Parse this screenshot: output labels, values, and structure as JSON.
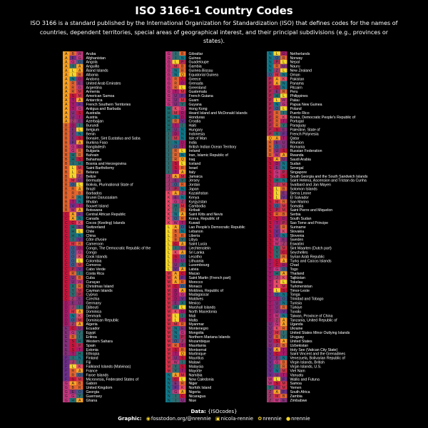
{
  "title": "ISO 3166-1 Country Codes",
  "subtitle": "ISO 3166 is a standard published by the International Organization for Standardization (ISO) that defines codes for the names of countries, dependent territories, special areas of geographical interest, and their principal subdivisions (e.g., provinces or states).",
  "caption": {
    "data_label": "Data:",
    "data_value": "{ISOcodes}",
    "graphic_label": "Graphic:",
    "handles": [
      {
        "icon": "mastodon-icon",
        "text": "fosstodon.org/@nrennie"
      },
      {
        "icon": "linkedin-icon",
        "text": "nicola-rennie"
      },
      {
        "icon": "bluesky-icon",
        "text": "nrennie"
      },
      {
        "icon": "github-icon",
        "text": "nrennie"
      }
    ]
  },
  "colors": {
    "background": "#000000",
    "text": "#ffffff",
    "palette": [
      "#f9a226",
      "#e5652f",
      "#c8153e",
      "#a71a6a",
      "#87307c",
      "#6d2f8a",
      "#c3377f",
      "#1f6f73",
      "#2e6b6f",
      "#a33a6d",
      "#e84c6a",
      "#f6d52a",
      "#d9344d",
      "#12798a",
      "#3c5c8a",
      "#b02a55"
    ]
  },
  "chart_data": {
    "type": "table",
    "description_columns": [
      "alpha-3 code letters",
      "country name"
    ],
    "rows": [
      {
        "code": "ABW",
        "name": "Aruba"
      },
      {
        "code": "AFG",
        "name": "Afghanistan"
      },
      {
        "code": "AGO",
        "name": "Angola"
      },
      {
        "code": "AIA",
        "name": "Anguilla"
      },
      {
        "code": "ALA",
        "name": "Åland Islands"
      },
      {
        "code": "ALB",
        "name": "Albania"
      },
      {
        "code": "AND",
        "name": "Andorra"
      },
      {
        "code": "ARE",
        "name": "United Arab Emirates"
      },
      {
        "code": "ARG",
        "name": "Argentina"
      },
      {
        "code": "ARM",
        "name": "Armenia"
      },
      {
        "code": "ASM",
        "name": "American Samoa"
      },
      {
        "code": "ATA",
        "name": "Antarctica"
      },
      {
        "code": "ATF",
        "name": "French Southern Territories"
      },
      {
        "code": "ATG",
        "name": "Antigua and Barbuda"
      },
      {
        "code": "AUS",
        "name": "Australia"
      },
      {
        "code": "AUT",
        "name": "Austria"
      },
      {
        "code": "AZE",
        "name": "Azerbaijan"
      },
      {
        "code": "BDI",
        "name": "Burundi"
      },
      {
        "code": "BEL",
        "name": "Belgium"
      },
      {
        "code": "BEN",
        "name": "Benin"
      },
      {
        "code": "BES",
        "name": "Bonaire, Sint Eustatius and Saba"
      },
      {
        "code": "BFA",
        "name": "Burkina Faso"
      },
      {
        "code": "BGD",
        "name": "Bangladesh"
      },
      {
        "code": "BGR",
        "name": "Bulgaria"
      },
      {
        "code": "BHR",
        "name": "Bahrain"
      },
      {
        "code": "BHS",
        "name": "Bahamas"
      },
      {
        "code": "BIH",
        "name": "Bosnia and Herzegovina"
      },
      {
        "code": "BLM",
        "name": "Saint Barthélemy"
      },
      {
        "code": "BLR",
        "name": "Belarus"
      },
      {
        "code": "BLZ",
        "name": "Belize"
      },
      {
        "code": "BMU",
        "name": "Bermuda"
      },
      {
        "code": "BOL",
        "name": "Bolivia, Plurinational State of"
      },
      {
        "code": "BRA",
        "name": "Brazil"
      },
      {
        "code": "BRB",
        "name": "Barbados"
      },
      {
        "code": "BRN",
        "name": "Brunei Darussalam"
      },
      {
        "code": "BTN",
        "name": "Bhutan"
      },
      {
        "code": "BVT",
        "name": "Bouvet Island"
      },
      {
        "code": "BWA",
        "name": "Botswana"
      },
      {
        "code": "CAF",
        "name": "Central African Republic"
      },
      {
        "code": "CAN",
        "name": "Canada"
      },
      {
        "code": "CCK",
        "name": "Cocos (Keeling) Islands"
      },
      {
        "code": "CHE",
        "name": "Switzerland"
      },
      {
        "code": "CHL",
        "name": "Chile"
      },
      {
        "code": "CHN",
        "name": "China"
      },
      {
        "code": "CIV",
        "name": "Côte d'Ivoire"
      },
      {
        "code": "CMR",
        "name": "Cameroon"
      },
      {
        "code": "COD",
        "name": "Congo, The Democratic Republic of the"
      },
      {
        "code": "COG",
        "name": "Congo"
      },
      {
        "code": "COK",
        "name": "Cook Islands"
      },
      {
        "code": "COL",
        "name": "Colombia"
      },
      {
        "code": "COM",
        "name": "Comoros"
      },
      {
        "code": "CPV",
        "name": "Cabo Verde"
      },
      {
        "code": "CRI",
        "name": "Costa Rica"
      },
      {
        "code": "CUB",
        "name": "Cuba"
      },
      {
        "code": "CUW",
        "name": "Curaçao"
      },
      {
        "code": "CXR",
        "name": "Christmas Island"
      },
      {
        "code": "CYM",
        "name": "Cayman Islands"
      },
      {
        "code": "CYP",
        "name": "Cyprus"
      },
      {
        "code": "CZE",
        "name": "Czechia"
      },
      {
        "code": "DEU",
        "name": "Germany"
      },
      {
        "code": "DJI",
        "name": "Djibouti"
      },
      {
        "code": "DMA",
        "name": "Dominica"
      },
      {
        "code": "DNK",
        "name": "Denmark"
      },
      {
        "code": "DOM",
        "name": "Dominican Republic"
      },
      {
        "code": "DZA",
        "name": "Algeria"
      },
      {
        "code": "ECU",
        "name": "Ecuador"
      },
      {
        "code": "EGY",
        "name": "Egypt"
      },
      {
        "code": "ERI",
        "name": "Eritrea"
      },
      {
        "code": "ESH",
        "name": "Western Sahara"
      },
      {
        "code": "ESP",
        "name": "Spain"
      },
      {
        "code": "EST",
        "name": "Estonia"
      },
      {
        "code": "ETH",
        "name": "Ethiopia"
      },
      {
        "code": "FIN",
        "name": "Finland"
      },
      {
        "code": "FJI",
        "name": "Fiji"
      },
      {
        "code": "FLK",
        "name": "Falkland Islands (Malvinas)"
      },
      {
        "code": "FRA",
        "name": "France"
      },
      {
        "code": "FRO",
        "name": "Faroe Islands"
      },
      {
        "code": "FSM",
        "name": "Micronesia, Federated States of"
      },
      {
        "code": "GAB",
        "name": "Gabon"
      },
      {
        "code": "GBR",
        "name": "United Kingdom"
      },
      {
        "code": "GEO",
        "name": "Georgia"
      },
      {
        "code": "GGY",
        "name": "Guernsey"
      },
      {
        "code": "GHA",
        "name": "Ghana"
      },
      {
        "code": "GIB",
        "name": "Gibraltar"
      },
      {
        "code": "GIN",
        "name": "Guinea"
      },
      {
        "code": "GLP",
        "name": "Guadeloupe"
      },
      {
        "code": "GMB",
        "name": "Gambia"
      },
      {
        "code": "GNB",
        "name": "Guinea-Bissau"
      },
      {
        "code": "GNQ",
        "name": "Equatorial Guinea"
      },
      {
        "code": "GRC",
        "name": "Greece"
      },
      {
        "code": "GRD",
        "name": "Grenada"
      },
      {
        "code": "GRL",
        "name": "Greenland"
      },
      {
        "code": "GTM",
        "name": "Guatemala"
      },
      {
        "code": "GUF",
        "name": "French Guiana"
      },
      {
        "code": "GUM",
        "name": "Guam"
      },
      {
        "code": "GUY",
        "name": "Guyana"
      },
      {
        "code": "HKG",
        "name": "Hong Kong"
      },
      {
        "code": "HMD",
        "name": "Heard Island and McDonald Islands"
      },
      {
        "code": "HND",
        "name": "Honduras"
      },
      {
        "code": "HRV",
        "name": "Croatia"
      },
      {
        "code": "HTI",
        "name": "Haiti"
      },
      {
        "code": "HUN",
        "name": "Hungary"
      },
      {
        "code": "IDN",
        "name": "Indonesia"
      },
      {
        "code": "IMN",
        "name": "Isle of Man"
      },
      {
        "code": "IND",
        "name": "India"
      },
      {
        "code": "IOT",
        "name": "British Indian Ocean Territory"
      },
      {
        "code": "IRL",
        "name": "Ireland"
      },
      {
        "code": "IRN",
        "name": "Iran, Islamic Republic of"
      },
      {
        "code": "IRQ",
        "name": "Iraq"
      },
      {
        "code": "ISL",
        "name": "Iceland"
      },
      {
        "code": "ISR",
        "name": "Israel"
      },
      {
        "code": "ITA",
        "name": "Italy"
      },
      {
        "code": "JAM",
        "name": "Jamaica"
      },
      {
        "code": "JEY",
        "name": "Jersey"
      },
      {
        "code": "JOR",
        "name": "Jordan"
      },
      {
        "code": "JPN",
        "name": "Japan"
      },
      {
        "code": "KAZ",
        "name": "Kazakhstan"
      },
      {
        "code": "KEN",
        "name": "Kenya"
      },
      {
        "code": "KGZ",
        "name": "Kyrgyzstan"
      },
      {
        "code": "KHM",
        "name": "Cambodia"
      },
      {
        "code": "KIR",
        "name": "Kiribati"
      },
      {
        "code": "KNA",
        "name": "Saint Kitts and Nevis"
      },
      {
        "code": "KOR",
        "name": "Korea, Republic of"
      },
      {
        "code": "KWT",
        "name": "Kuwait"
      },
      {
        "code": "LAO",
        "name": "Lao People's Democratic Republic"
      },
      {
        "code": "LBN",
        "name": "Lebanon"
      },
      {
        "code": "LBR",
        "name": "Liberia"
      },
      {
        "code": "LBY",
        "name": "Libya"
      },
      {
        "code": "LCA",
        "name": "Saint Lucia"
      },
      {
        "code": "LIE",
        "name": "Liechtenstein"
      },
      {
        "code": "LKA",
        "name": "Sri Lanka"
      },
      {
        "code": "LSO",
        "name": "Lesotho"
      },
      {
        "code": "LTU",
        "name": "Lithuania"
      },
      {
        "code": "LUX",
        "name": "Luxembourg"
      },
      {
        "code": "LVA",
        "name": "Latvia"
      },
      {
        "code": "MAC",
        "name": "Macao"
      },
      {
        "code": "MAF",
        "name": "Saint Martin (French part)"
      },
      {
        "code": "MAR",
        "name": "Morocco"
      },
      {
        "code": "MCO",
        "name": "Monaco"
      },
      {
        "code": "MDA",
        "name": "Moldova, Republic of"
      },
      {
        "code": "MDG",
        "name": "Madagascar"
      },
      {
        "code": "MDV",
        "name": "Maldives"
      },
      {
        "code": "MEX",
        "name": "Mexico"
      },
      {
        "code": "MHL",
        "name": "Marshall Islands"
      },
      {
        "code": "MKD",
        "name": "North Macedonia"
      },
      {
        "code": "MLI",
        "name": "Mali"
      },
      {
        "code": "MLT",
        "name": "Malta"
      },
      {
        "code": "MMR",
        "name": "Myanmar"
      },
      {
        "code": "MNE",
        "name": "Montenegro"
      },
      {
        "code": "MNG",
        "name": "Mongolia"
      },
      {
        "code": "MNP",
        "name": "Northern Mariana Islands"
      },
      {
        "code": "MOZ",
        "name": "Mozambique"
      },
      {
        "code": "MRT",
        "name": "Mauritania"
      },
      {
        "code": "MSR",
        "name": "Montserrat"
      },
      {
        "code": "MTQ",
        "name": "Martinique"
      },
      {
        "code": "MUS",
        "name": "Mauritius"
      },
      {
        "code": "MWI",
        "name": "Malawi"
      },
      {
        "code": "MYS",
        "name": "Malaysia"
      },
      {
        "code": "MYT",
        "name": "Mayotte"
      },
      {
        "code": "NAM",
        "name": "Namibia"
      },
      {
        "code": "NCL",
        "name": "New Caledonia"
      },
      {
        "code": "NER",
        "name": "Niger"
      },
      {
        "code": "NFK",
        "name": "Norfolk Island"
      },
      {
        "code": "NGA",
        "name": "Nigeria"
      },
      {
        "code": "NIC",
        "name": "Nicaragua"
      },
      {
        "code": "NIU",
        "name": "Niue"
      },
      {
        "code": "NLD",
        "name": "Netherlands"
      },
      {
        "code": "NOR",
        "name": "Norway"
      },
      {
        "code": "NPL",
        "name": "Nepal"
      },
      {
        "code": "NRU",
        "name": "Nauru"
      },
      {
        "code": "NZL",
        "name": "New Zealand"
      },
      {
        "code": "OMN",
        "name": "Oman"
      },
      {
        "code": "PAK",
        "name": "Pakistan"
      },
      {
        "code": "PAN",
        "name": "Panama"
      },
      {
        "code": "PCN",
        "name": "Pitcairn"
      },
      {
        "code": "PER",
        "name": "Peru"
      },
      {
        "code": "PHL",
        "name": "Philippines"
      },
      {
        "code": "PLW",
        "name": "Palau"
      },
      {
        "code": "PNG",
        "name": "Papua New Guinea"
      },
      {
        "code": "POL",
        "name": "Poland"
      },
      {
        "code": "PRI",
        "name": "Puerto Rico"
      },
      {
        "code": "PRK",
        "name": "Korea, Democratic People's Republic of"
      },
      {
        "code": "PRT",
        "name": "Portugal"
      },
      {
        "code": "PRY",
        "name": "Paraguay"
      },
      {
        "code": "PSE",
        "name": "Palestine, State of"
      },
      {
        "code": "PYF",
        "name": "French Polynesia"
      },
      {
        "code": "QAT",
        "name": "Qatar"
      },
      {
        "code": "REU",
        "name": "Réunion"
      },
      {
        "code": "ROU",
        "name": "Romania"
      },
      {
        "code": "RUS",
        "name": "Russian Federation"
      },
      {
        "code": "RWA",
        "name": "Rwanda"
      },
      {
        "code": "SAU",
        "name": "Saudi Arabia"
      },
      {
        "code": "SDN",
        "name": "Sudan"
      },
      {
        "code": "SEN",
        "name": "Senegal"
      },
      {
        "code": "SGP",
        "name": "Singapore"
      },
      {
        "code": "SGS",
        "name": "South Georgia and the South Sandwich Islands"
      },
      {
        "code": "SHN",
        "name": "Saint Helena, Ascension and Tristan da Cunha"
      },
      {
        "code": "SJM",
        "name": "Svalbard and Jan Mayen"
      },
      {
        "code": "SLB",
        "name": "Solomon Islands"
      },
      {
        "code": "SLE",
        "name": "Sierra Leone"
      },
      {
        "code": "SLV",
        "name": "El Salvador"
      },
      {
        "code": "SMR",
        "name": "San Marino"
      },
      {
        "code": "SOM",
        "name": "Somalia"
      },
      {
        "code": "SPM",
        "name": "Saint Pierre and Miquelon"
      },
      {
        "code": "SRB",
        "name": "Serbia"
      },
      {
        "code": "SSD",
        "name": "South Sudan"
      },
      {
        "code": "STP",
        "name": "Sao Tome and Principe"
      },
      {
        "code": "SUR",
        "name": "Suriname"
      },
      {
        "code": "SVK",
        "name": "Slovakia"
      },
      {
        "code": "SVN",
        "name": "Slovenia"
      },
      {
        "code": "SWE",
        "name": "Sweden"
      },
      {
        "code": "SWZ",
        "name": "Eswatini"
      },
      {
        "code": "SXM",
        "name": "Sint Maarten (Dutch part)"
      },
      {
        "code": "SYC",
        "name": "Seychelles"
      },
      {
        "code": "SYR",
        "name": "Syrian Arab Republic"
      },
      {
        "code": "TCA",
        "name": "Turks and Caicos Islands"
      },
      {
        "code": "TCD",
        "name": "Chad"
      },
      {
        "code": "TGO",
        "name": "Togo"
      },
      {
        "code": "THA",
        "name": "Thailand"
      },
      {
        "code": "TJK",
        "name": "Tajikistan"
      },
      {
        "code": "TKL",
        "name": "Tokelau"
      },
      {
        "code": "TKM",
        "name": "Turkmenistan"
      },
      {
        "code": "TLS",
        "name": "Timor-Leste"
      },
      {
        "code": "TON",
        "name": "Tonga"
      },
      {
        "code": "TTO",
        "name": "Trinidad and Tobago"
      },
      {
        "code": "TUN",
        "name": "Tunisia"
      },
      {
        "code": "TUR",
        "name": "Türkiye"
      },
      {
        "code": "TUV",
        "name": "Tuvalu"
      },
      {
        "code": "TWN",
        "name": "Taiwan, Province of China"
      },
      {
        "code": "TZA",
        "name": "Tanzania, United Republic of"
      },
      {
        "code": "UGA",
        "name": "Uganda"
      },
      {
        "code": "UKR",
        "name": "Ukraine"
      },
      {
        "code": "UMI",
        "name": "United States Minor Outlying Islands"
      },
      {
        "code": "URY",
        "name": "Uruguay"
      },
      {
        "code": "USA",
        "name": "United States"
      },
      {
        "code": "UZB",
        "name": "Uzbekistan"
      },
      {
        "code": "VAT",
        "name": "Holy See (Vatican City State)"
      },
      {
        "code": "VCT",
        "name": "Saint Vincent and the Grenadines"
      },
      {
        "code": "VEN",
        "name": "Venezuela, Bolivarian Republic of"
      },
      {
        "code": "VGB",
        "name": "Virgin Islands, British"
      },
      {
        "code": "VIR",
        "name": "Virgin Islands, U.S."
      },
      {
        "code": "VNM",
        "name": "Viet Nam"
      },
      {
        "code": "VUT",
        "name": "Vanuatu"
      },
      {
        "code": "WLF",
        "name": "Wallis and Futuna"
      },
      {
        "code": "WSM",
        "name": "Samoa"
      },
      {
        "code": "YEM",
        "name": "Yemen"
      },
      {
        "code": "ZAF",
        "name": "South Africa"
      },
      {
        "code": "ZMB",
        "name": "Zambia"
      },
      {
        "code": "ZWE",
        "name": "Zimbabwe"
      }
    ]
  }
}
